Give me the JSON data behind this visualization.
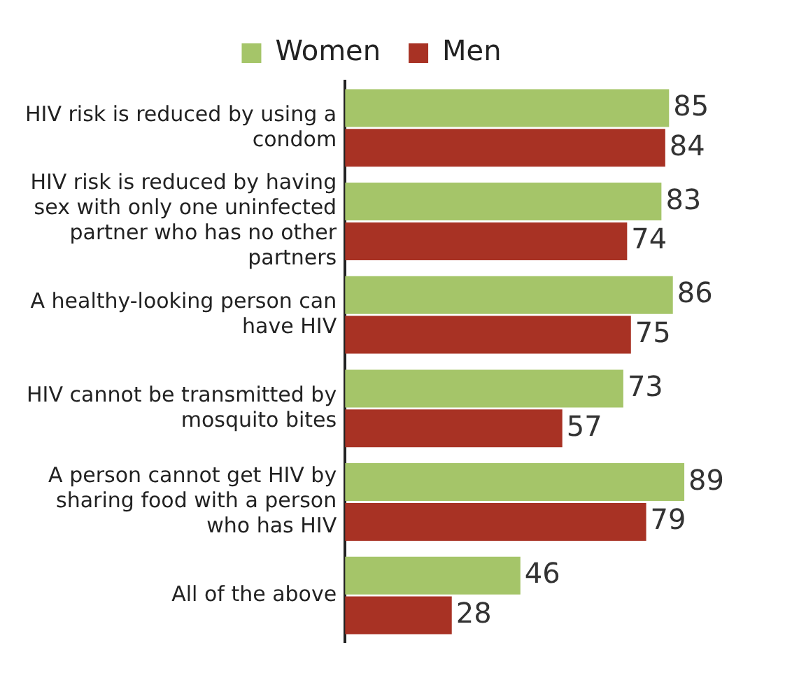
{
  "chart_data": {
    "type": "bar",
    "orientation": "horizontal",
    "categories": [
      "HIV risk is reduced by using a condom",
      "HIV risk is reduced by having sex with only one uninfected partner who has no other partners",
      "A healthy-looking person can have HIV",
      "HIV cannot be transmitted by mosquito bites",
      "A person cannot get HIV by sharing food with a person who has HIV",
      "All of the above"
    ],
    "series": [
      {
        "name": "Women",
        "color": "#a5c569",
        "values": [
          85,
          83,
          86,
          73,
          89,
          46
        ]
      },
      {
        "name": "Men",
        "color": "#a83224",
        "values": [
          84,
          74,
          75,
          57,
          79,
          28
        ]
      }
    ],
    "data_labels": true,
    "legend": "top",
    "grid": false,
    "tick_labels": "y"
  }
}
